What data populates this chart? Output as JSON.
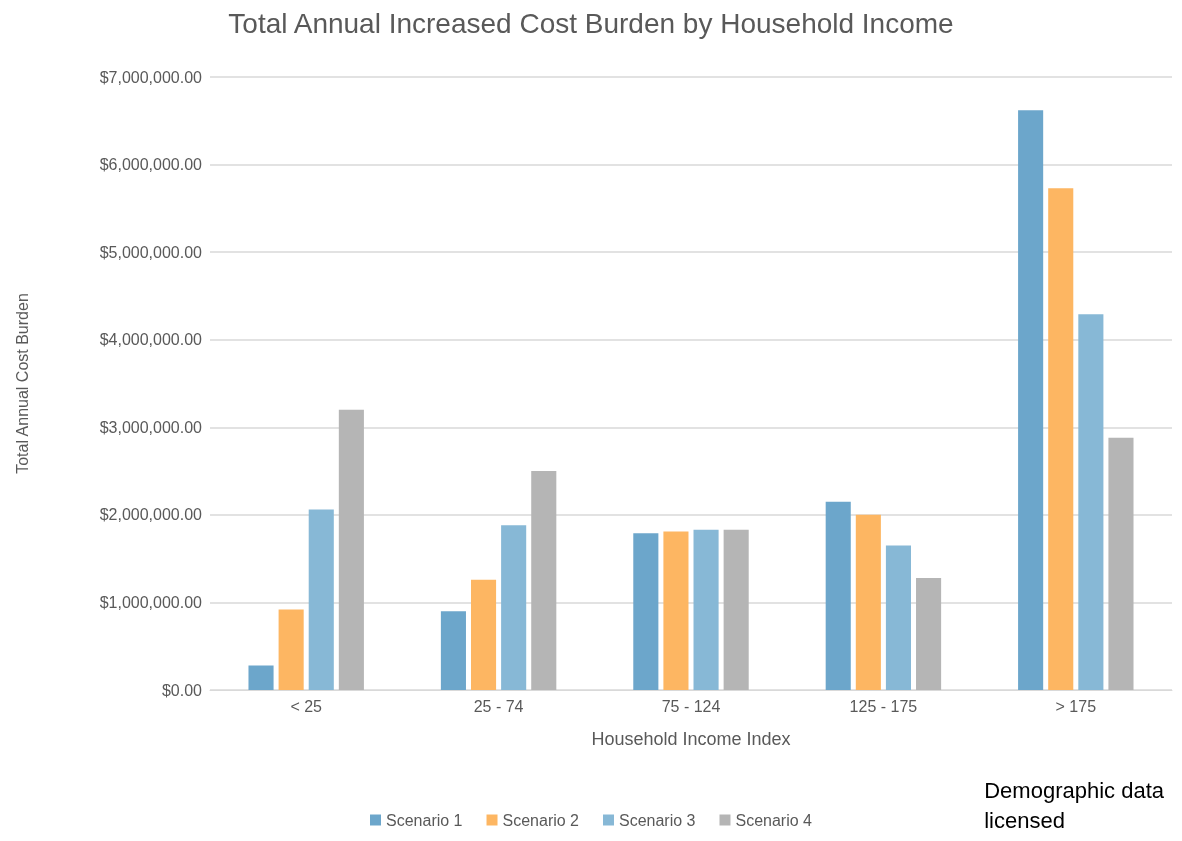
{
  "chart_data": {
    "type": "bar",
    "title": "Total Annual Increased Cost Burden by Household Income",
    "xlabel": "Household Income Index",
    "ylabel": "Total Annual Cost Burden",
    "categories": [
      "< 25",
      "25 - 74",
      "75 - 124",
      "125 - 175",
      "> 175"
    ],
    "series": [
      {
        "name": "Scenario 1",
        "color": "#6ca6cb",
        "values": [
          280000,
          900000,
          1790000,
          2150000,
          6620000
        ]
      },
      {
        "name": "Scenario 2",
        "color": "#fdb662",
        "values": [
          920000,
          1260000,
          1810000,
          2000000,
          5730000
        ]
      },
      {
        "name": "Scenario 3",
        "color": "#87b8d6",
        "values": [
          2060000,
          1880000,
          1830000,
          1650000,
          4290000
        ]
      },
      {
        "name": "Scenario 4",
        "color": "#b5b5b5",
        "values": [
          3200000,
          2500000,
          1830000,
          1280000,
          2880000
        ]
      }
    ],
    "ylim": [
      0,
      7000000
    ],
    "yticks": [
      {
        "value": 0,
        "label": "$0.00"
      },
      {
        "value": 1000000,
        "label": "$1,000,000.00"
      },
      {
        "value": 2000000,
        "label": "$2,000,000.00"
      },
      {
        "value": 3000000,
        "label": "$3,000,000.00"
      },
      {
        "value": 4000000,
        "label": "$4,000,000.00"
      },
      {
        "value": 5000000,
        "label": "$5,000,000.00"
      },
      {
        "value": 6000000,
        "label": "$6,000,000.00"
      },
      {
        "value": 7000000,
        "label": "$7,000,000.00"
      }
    ],
    "grid": "y",
    "legend": "bottom",
    "annotations": [
      "Demographic data\nlicensed"
    ]
  }
}
